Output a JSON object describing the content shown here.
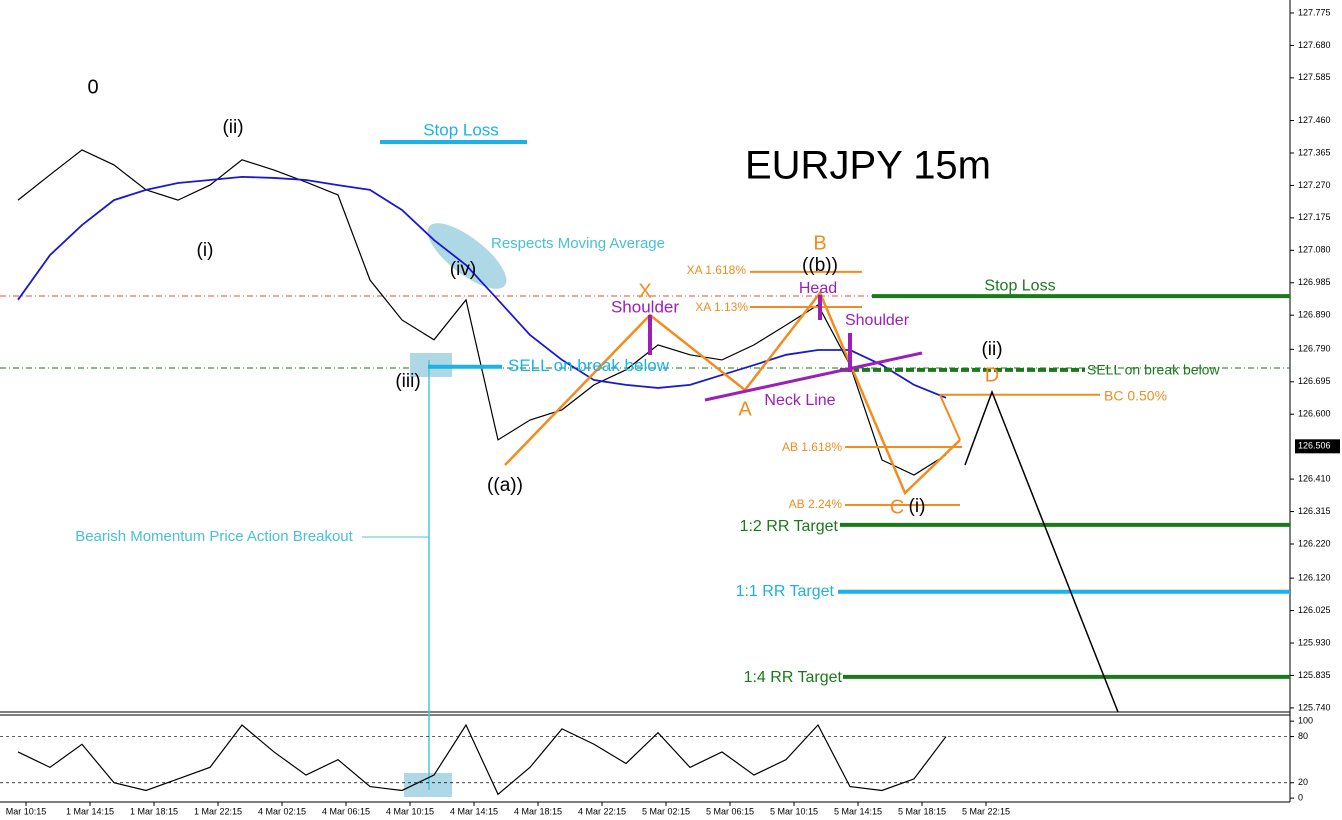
{
  "chart_data": [
    {
      "type": "line",
      "title": "EURJPY 15m",
      "categories": [
        "Mar 10:15",
        null,
        "1 Mar 14:15",
        null,
        "1 Mar 18:15",
        null,
        "1 Mar 22:15",
        null,
        "4 Mar 02:15",
        null,
        "4 Mar 06:15",
        null,
        "4 Mar 10:15",
        null,
        "4 Mar 14:15",
        null,
        "4 Mar 18:15",
        null,
        "4 Mar 22:15",
        null,
        "5 Mar 02:15",
        null,
        "5 Mar 06:15",
        null,
        "5 Mar 10:15",
        null,
        "5 Mar 14:15",
        null,
        "5 Mar 18:15",
        null,
        "5 Mar 22:15"
      ],
      "series": [
        {
          "color": "#000000",
          "values": [
            127.227,
            127.301,
            127.374,
            127.33,
            127.257,
            127.227,
            127.271,
            127.345,
            127.315,
            127.28,
            127.242,
            126.993,
            126.876,
            126.818,
            126.935,
            126.525,
            126.583,
            126.613,
            126.686,
            126.73,
            126.803,
            126.774,
            126.759,
            126.803,
            126.861,
            126.92,
            126.744,
            126.466,
            126.422,
            126.481,
            null
          ]
        },
        {
          "color": "#1a1acc",
          "values": [
            126.935,
            127.066,
            127.154,
            127.227,
            127.257,
            127.277,
            127.286,
            127.295,
            127.292,
            127.286,
            127.271,
            127.257,
            127.198,
            127.11,
            127.037,
            126.935,
            126.832,
            126.759,
            126.7,
            126.686,
            126.677,
            126.686,
            126.715,
            126.744,
            126.774,
            126.788,
            126.788,
            126.744,
            126.686,
            126.648,
            null
          ]
        }
      ],
      "ylim": [
        125.728,
        127.813
      ],
      "yticks": [
        127.775,
        {
          "value": 127.68,
          "label": "127.680"
        },
        127.585,
        {
          "value": 127.46,
          "label": "127.460"
        },
        127.365,
        {
          "value": 127.27,
          "label": "127.270"
        },
        127.175,
        {
          "value": 127.08,
          "label": "127.080"
        },
        126.985,
        {
          "value": 126.89,
          "label": "126.890"
        },
        {
          "value": 126.79,
          "label": "126.790"
        },
        126.695,
        {
          "value": 126.6,
          "label": "126.600"
        },
        {
          "value": 126.41,
          "label": "126.410"
        },
        126.315,
        {
          "value": 126.22,
          "label": "126.220"
        },
        {
          "value": 126.12,
          "label": "126.120"
        },
        126.025,
        {
          "value": 125.93,
          "label": "125.930"
        },
        125.835,
        {
          "value": 125.74,
          "label": "125.740"
        }
      ],
      "last_price": 126.506,
      "levels": [
        {
          "label": "Stop Loss",
          "value": 127.397,
          "color": "#1ab2e8"
        },
        {
          "label": "SELL on break below",
          "value": 126.739,
          "color": "#1ab2e8"
        },
        {
          "label": "Stop Loss",
          "value": 126.946,
          "color": "#1a7a1a"
        },
        {
          "label": "SELL on break below",
          "value": 126.73,
          "color": "#1a7a1a"
        },
        {
          "label": "1:2 RR Target",
          "value": 126.276,
          "color": "#1a7a1a"
        },
        {
          "label": "1:1 RR Target",
          "value": 126.08,
          "color": "#1ab2e8"
        },
        {
          "label": "1:4 RR Target",
          "value": 125.831,
          "color": "#1a7a1a"
        },
        {
          "label": "XA 1.618%",
          "value": 127.017,
          "color": "#f28c1e"
        },
        {
          "label": "XA 1.13%",
          "value": 126.914,
          "color": "#f28c1e"
        },
        {
          "label": "BC 0.50%",
          "value": 126.657,
          "color": "#f28c1e"
        },
        {
          "label": "AB 1.618%",
          "value": 126.504,
          "color": "#f28c1e"
        },
        {
          "label": "AB 2.24%",
          "value": 126.334,
          "color": "#f28c1e"
        }
      ],
      "annotations": [
        "EURJPY 15m",
        "0",
        "(ii)",
        "(i)",
        "(iv)",
        "(iii)",
        "((a))",
        "((b))",
        "(ii)",
        "(i)",
        "X",
        "A",
        "B",
        "C",
        "D",
        "Shoulder",
        "Head",
        "Shoulder",
        "Neck Line",
        "Respects Moving Average",
        "Bearish Momentum Price Action Breakout"
      ]
    },
    {
      "type": "line",
      "series": [
        {
          "color": "#000000",
          "values": [
            60,
            40,
            70,
            20,
            10,
            25,
            40,
            95,
            60,
            30,
            50,
            15,
            10,
            30,
            95,
            5,
            40,
            90,
            70,
            45,
            85,
            40,
            60,
            30,
            50,
            95,
            15,
            10,
            25,
            80,
            null
          ]
        }
      ],
      "ylim": [
        -5,
        108
      ],
      "yticks": [
        100,
        80,
        20,
        0
      ]
    }
  ]
}
